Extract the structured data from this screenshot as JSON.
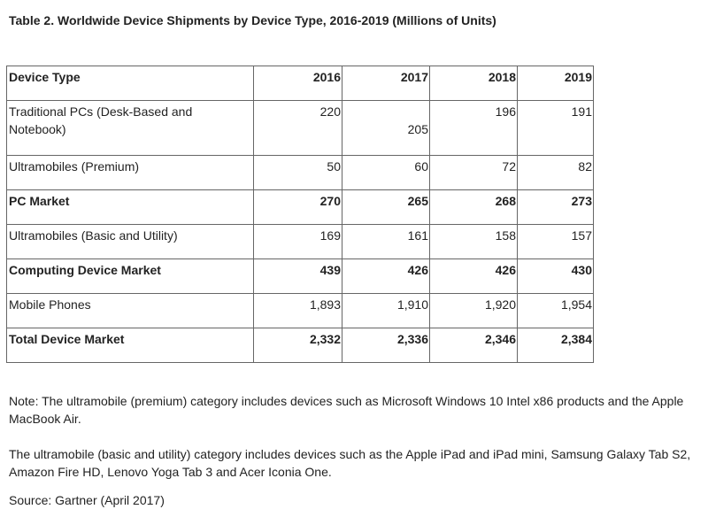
{
  "title": "Table 2. Worldwide Device Shipments by Device Type, 2016-2019 (Millions of Units)",
  "table": {
    "headers": [
      "Device Type",
      "2016",
      "2017",
      "2018",
      "2019"
    ],
    "rows": [
      {
        "label": "Traditional PCs (Desk-Based and Notebook)",
        "values": [
          "220",
          "205",
          "196",
          "191"
        ],
        "bold": false
      },
      {
        "label": "Ultramobiles (Premium)",
        "values": [
          "50",
          "60",
          "72",
          "82"
        ],
        "bold": false
      },
      {
        "label": "PC Market",
        "values": [
          "270",
          "265",
          "268",
          "273"
        ],
        "bold": true
      },
      {
        "label": "Ultramobiles (Basic and Utility)",
        "values": [
          "169",
          "161",
          "158",
          "157"
        ],
        "bold": false
      },
      {
        "label": "Computing Device Market",
        "values": [
          "439",
          "426",
          "426",
          "430"
        ],
        "bold": true
      },
      {
        "label": "Mobile Phones",
        "values": [
          "1,893",
          "1,910",
          "1,920",
          "1,954"
        ],
        "bold": false
      },
      {
        "label": "Total Device Market",
        "values": [
          "2,332",
          "2,336",
          "2,346",
          "2,384"
        ],
        "bold": true
      }
    ]
  },
  "notes": {
    "premium": "Note: The ultramobile (premium) category includes devices such as Microsoft Windows 10 Intel x86 products and the Apple MacBook Air.",
    "basic": "The ultramobile (basic and utility) category includes devices such as the Apple iPad and iPad mini, Samsung Galaxy Tab S2, Amazon Fire HD, Lenovo Yoga Tab 3 and Acer Iconia One.",
    "source": "Source: Gartner (April 2017)"
  }
}
